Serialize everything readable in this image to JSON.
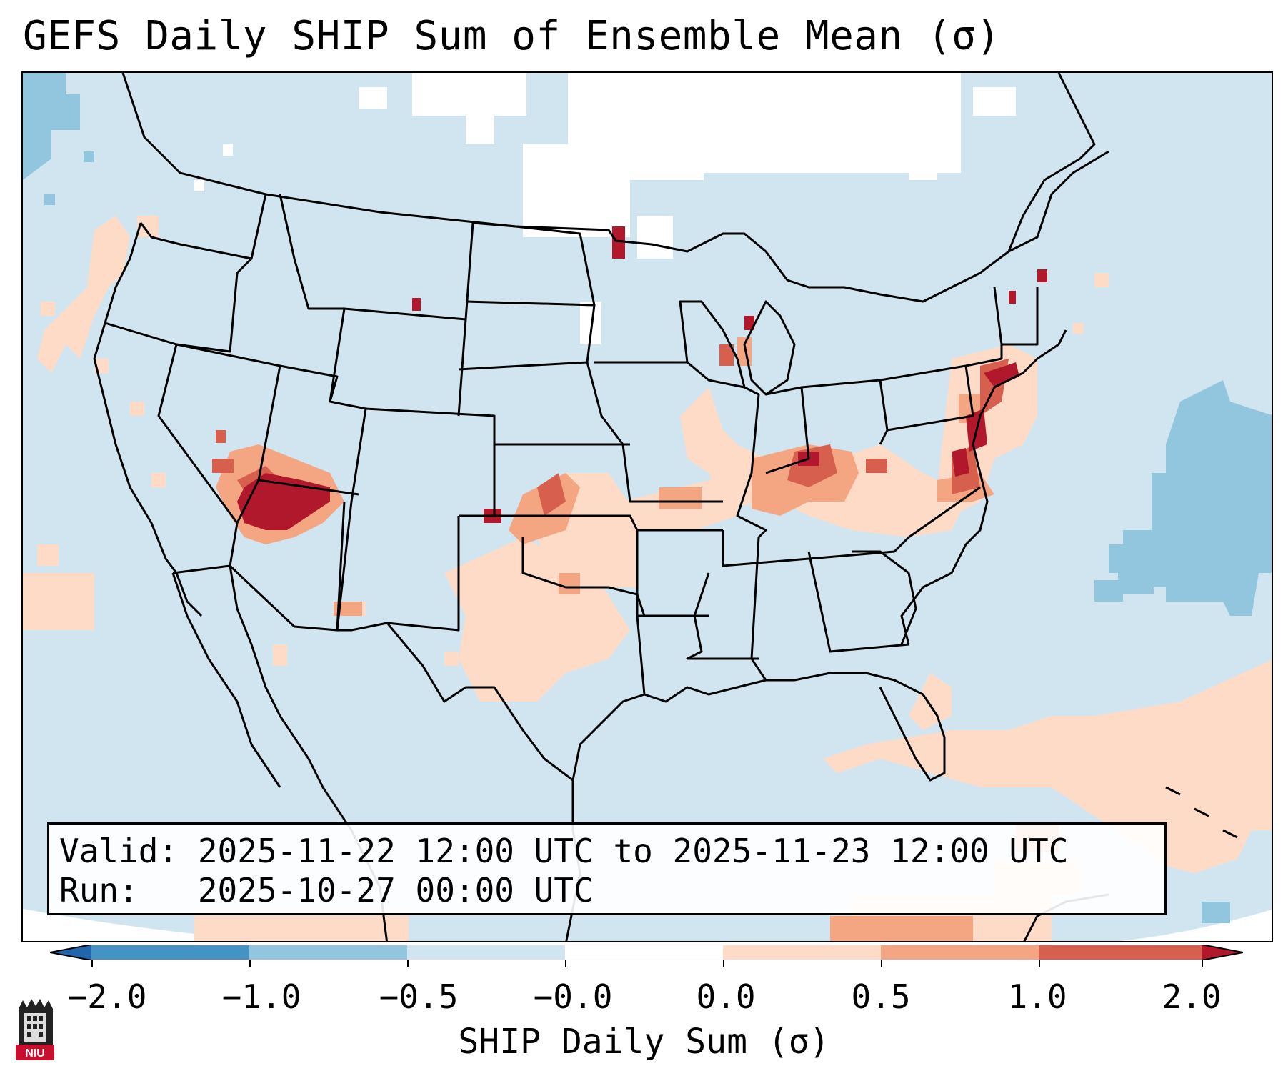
{
  "title": "GEFS Daily SHIP Sum of Ensemble Mean (σ)",
  "map": {
    "region": "Contiguous United States",
    "colors": {
      "ocean_background": "#d1e5f0",
      "out_of_domain": "#ffffff",
      "below_minus_1": "#92c5de",
      "above_0": "#fddbc7",
      "above_0_5": "#f4a582",
      "above_1": "#d6604d",
      "above_2": "#b2182b",
      "borders": "#000000"
    }
  },
  "info_box": {
    "valid": "Valid: 2025-11-22 12:00 UTC to 2025-11-23 12:00 UTC",
    "run": "Run:   2025-10-27 00:00 UTC"
  },
  "colorbar": {
    "label": "SHIP Daily Sum (σ)",
    "ticks": [
      "−2.0",
      "−1.0",
      "−0.5",
      "−0.0",
      "0.0",
      "0.5",
      "1.0",
      "2.0"
    ],
    "segment_colors": [
      "#2166ac",
      "#4393c3",
      "#92c5de",
      "#d1e5f0",
      "#ffffff",
      "#fddbc7",
      "#f4a582",
      "#d6604d",
      "#b2182b"
    ]
  },
  "logo": {
    "text": "NIU",
    "color": "#c8102e"
  }
}
